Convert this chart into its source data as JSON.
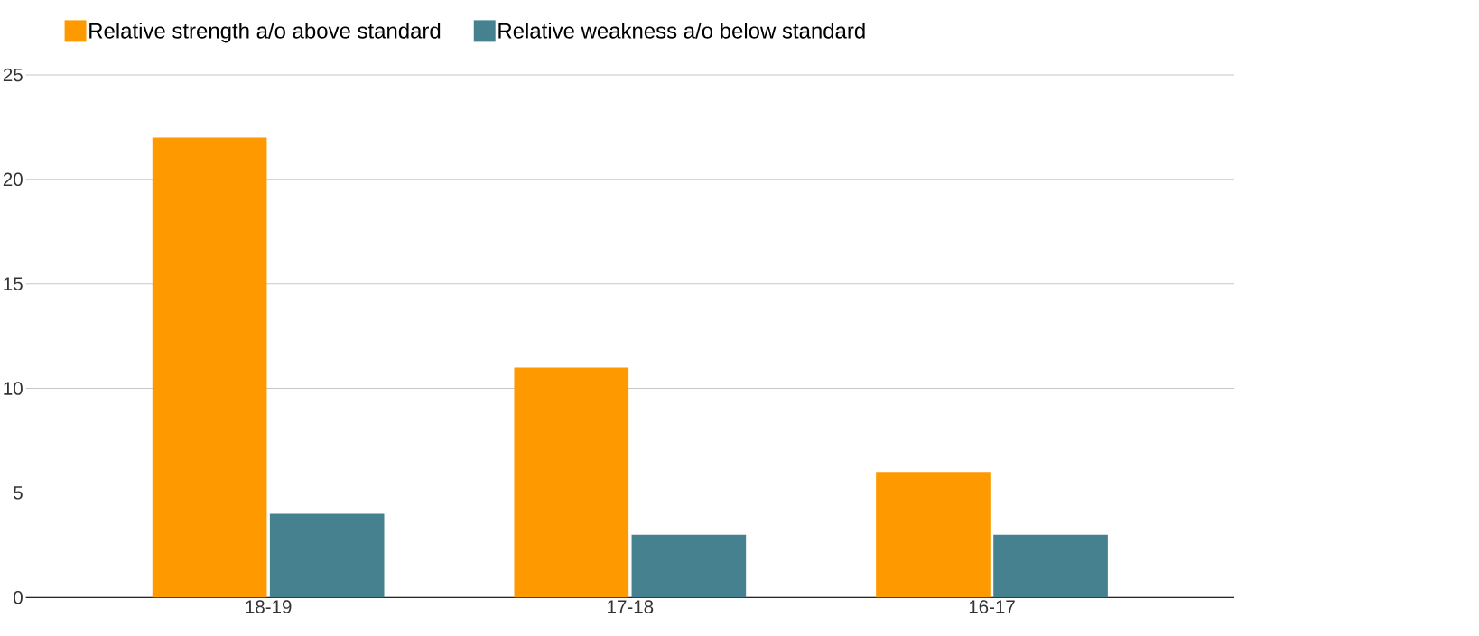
{
  "chart_data": {
    "type": "bar",
    "categories": [
      "18-19",
      "17-18",
      "16-17"
    ],
    "series": [
      {
        "name": "Relative strength a/o above standard",
        "color": "#ff9900",
        "values": [
          22,
          11,
          6
        ]
      },
      {
        "name": "Relative weakness a/o below standard",
        "color": "#45818e",
        "values": [
          4,
          3,
          3
        ]
      }
    ],
    "ylim": [
      0,
      25
    ],
    "yticks": [
      0,
      5,
      10,
      15,
      20,
      25
    ],
    "grid": "y",
    "legend": "top left"
  }
}
